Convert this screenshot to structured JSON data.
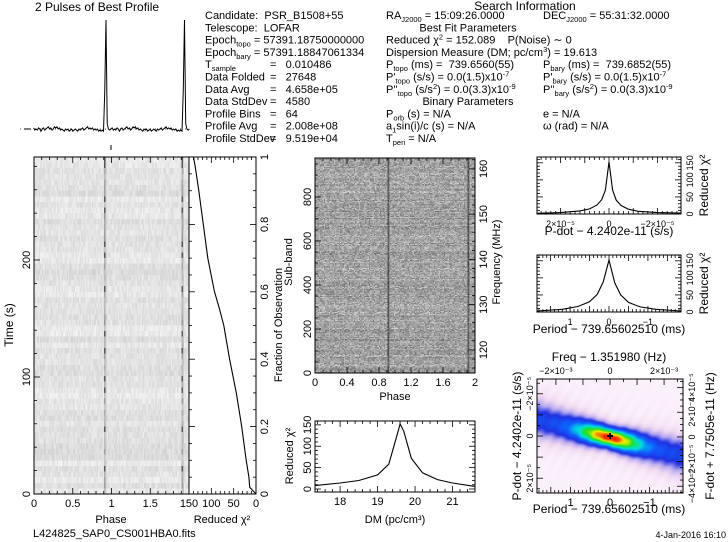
{
  "title": "2 Pulses of Best Profile",
  "footer": {
    "filename": "L424825_SAP0_CS001HBA0.fits",
    "date": "4-Jan-2016 16:10"
  },
  "info": {
    "heading": "Search Information",
    "col1": [
      [
        [
          "Candidate:  PSR_B1508+55",
          ""
        ]
      ],
      [
        [
          "Telescope:  LOFAR",
          ""
        ]
      ],
      [
        [
          "Epoch",
          ""
        ],
        [
          "topo",
          "sub"
        ],
        [
          " = 57391.18750000000",
          ""
        ]
      ],
      [
        [
          "Epoch",
          ""
        ],
        [
          "bary",
          "sub"
        ],
        [
          " = 57391.18847061334",
          ""
        ]
      ],
      [
        [
          "T",
          ""
        ],
        [
          "sample",
          "sub"
        ]
      ],
      [
        [
          "Data Folded",
          ""
        ]
      ],
      [
        [
          "Data Avg",
          ""
        ]
      ],
      [
        [
          "Data StdDev",
          ""
        ]
      ],
      [
        [
          "Profile Bins",
          ""
        ]
      ],
      [
        [
          "Profile Avg",
          ""
        ]
      ],
      [
        [
          "Profile StdDev",
          ""
        ]
      ]
    ],
    "col1_values": [
      "",
      "",
      "",
      "",
      "=   0.010486",
      "=   27648",
      "=   4.658e+05",
      "=   4580",
      "=   64",
      "=   2.008e+08",
      "=   9.519e+04"
    ],
    "col2": [
      {
        "segs": [
          [
            "RA",
            ""
          ],
          [
            "J2000",
            "sub"
          ],
          [
            " = 15:09:26.0000",
            ""
          ]
        ]
      },
      {
        "heading": true,
        "segs": [
          [
            "Best Fit Parameters",
            ""
          ]
        ]
      },
      {
        "segs": [
          [
            "Reduced χ",
            ""
          ],
          [
            "2",
            "sup"
          ],
          [
            " = 152.089    P(Noise) ∼ 0",
            ""
          ]
        ]
      },
      {
        "segs": [
          [
            "Dispersion Measure (DM; pc/cm",
            ""
          ],
          [
            "3",
            "sup"
          ],
          [
            ") = 19.613",
            ""
          ]
        ]
      },
      {
        "segs": [
          [
            "P",
            ""
          ],
          [
            "topo",
            "sub"
          ],
          [
            " (ms) =  739.6560(55)",
            ""
          ]
        ]
      },
      {
        "segs": [
          [
            "P'",
            ""
          ],
          [
            "topo",
            "sub"
          ],
          [
            " (s/s) = 0.0(1.5)x10",
            ""
          ],
          [
            "-7",
            "sup"
          ]
        ]
      },
      {
        "segs": [
          [
            "P''",
            ""
          ],
          [
            "topo",
            "sub"
          ],
          [
            " (s/s",
            ""
          ],
          [
            "2",
            "sup"
          ],
          [
            ") = 0.0(3.3)x10",
            ""
          ],
          [
            "-9",
            "sup"
          ]
        ]
      },
      {
        "heading": true,
        "segs": [
          [
            "Binary Parameters",
            ""
          ]
        ]
      },
      {
        "segs": [
          [
            "P",
            ""
          ],
          [
            "orb",
            "sub"
          ],
          [
            " (s) = N/A",
            ""
          ]
        ]
      },
      {
        "segs": [
          [
            "a",
            ""
          ],
          [
            "1",
            "sub"
          ],
          [
            "sin(i)/c (s) = N/A",
            ""
          ]
        ]
      },
      {
        "segs": [
          [
            "T",
            ""
          ],
          [
            "peri",
            "sub"
          ],
          [
            " = N/A",
            ""
          ]
        ]
      }
    ],
    "col3": [
      [
        [
          "DEC",
          ""
        ],
        [
          "J2000",
          "sub"
        ],
        [
          " = 55:31:32.0000",
          ""
        ]
      ],
      [],
      [],
      [],
      [
        [
          "P",
          ""
        ],
        [
          "bary",
          "sub"
        ],
        [
          " (ms) =  739.6852(55)",
          ""
        ]
      ],
      [
        [
          "P'",
          ""
        ],
        [
          "bary",
          "sub"
        ],
        [
          " (s/s) = 0.0(1.5)x10",
          ""
        ],
        [
          "-7",
          "sup"
        ]
      ],
      [
        [
          "P''",
          ""
        ],
        [
          "bary",
          "sub"
        ],
        [
          " (s/s",
          ""
        ],
        [
          "2",
          "sup"
        ],
        [
          ") = 0.0(3.3)x10",
          ""
        ],
        [
          "-9",
          "sup"
        ]
      ],
      [],
      [
        [
          "e = N/A",
          ""
        ]
      ],
      [
        [
          "ω (rad) = N/A",
          ""
        ]
      ]
    ]
  },
  "colors": {
    "ink": "#000000",
    "colormap": [
      [
        0,
        "#fbf2fb"
      ],
      [
        0.08,
        "#f0d8f2"
      ],
      [
        0.18,
        "#b4a8f0"
      ],
      [
        0.3,
        "#2030e0"
      ],
      [
        0.45,
        "#1060ff"
      ],
      [
        0.6,
        "#00e0e0"
      ],
      [
        0.74,
        "#20e020"
      ],
      [
        0.87,
        "#f0f000"
      ],
      [
        1,
        "#ff2000"
      ]
    ]
  },
  "chart_data": [
    {
      "id": "profile",
      "type": "line",
      "title": "2 Pulses of Best Profile",
      "pulses": 2,
      "bins": 64,
      "values": [
        0.01,
        -0.01,
        0.0,
        -0.01,
        0.01,
        0.0,
        -0.02,
        0.0,
        0.01,
        -0.01,
        0.0,
        0.01,
        0.02,
        0.0,
        0.01,
        -0.01,
        0.0,
        0.02,
        0.01,
        0.02,
        0.0,
        0.01,
        -0.01,
        0.0,
        -0.01,
        -0.02,
        0.0,
        -0.01,
        0.0,
        -0.02,
        -0.01,
        0.0,
        -0.02,
        -0.01,
        0.0,
        -0.01,
        -0.02,
        0.0,
        -0.01,
        0.0,
        0.01,
        -0.01,
        0.0,
        0.01,
        0.02,
        0.0,
        0.01,
        0.0,
        0.01,
        -0.01,
        0.0,
        -0.01,
        0.0,
        -0.02,
        -0.01,
        -0.02,
        -0.01,
        -0.02,
        0.35,
        1.0,
        0.05,
        0.0,
        -0.01,
        0.0
      ]
    },
    {
      "id": "time_phase",
      "type": "heatmap",
      "colormap": "grayscale",
      "xlabel": "Phase",
      "ylabel": "Time (s)",
      "xlim": [
        0,
        2
      ],
      "ylim": [
        0,
        288
      ],
      "pulse_phase": 0.92,
      "xticks": [
        {
          "v": 0,
          "t": "0"
        },
        {
          "v": 0.5,
          "t": "0.5"
        },
        {
          "v": 1,
          "t": "1"
        },
        {
          "v": 1.5,
          "t": "1.5"
        }
      ],
      "yticks": [
        {
          "v": 0,
          "t": "0"
        },
        {
          "v": 100,
          "t": "100"
        },
        {
          "v": 200,
          "t": "200"
        }
      ]
    },
    {
      "id": "chi_vs_fraction",
      "type": "line",
      "xlabel": "Reduced χ²",
      "ylabel": "Fraction of Observation",
      "xlim": [
        150,
        0
      ],
      "ylim": [
        0,
        1
      ],
      "xticks": [
        {
          "v": 150,
          "t": "150"
        },
        {
          "v": 100,
          "t": "100"
        },
        {
          "v": 50,
          "t": "50"
        },
        {
          "v": 0,
          "t": "0"
        }
      ],
      "yticks": [
        {
          "v": 0,
          "t": "0"
        },
        {
          "v": 0.2,
          "t": "0.2"
        },
        {
          "v": 0.4,
          "t": "0.4"
        },
        {
          "v": 0.6,
          "t": "0.6"
        },
        {
          "v": 0.8,
          "t": "0.8"
        },
        {
          "v": 1,
          "t": "1"
        }
      ],
      "points": [
        [
          0,
          0
        ],
        [
          0.02,
          14
        ],
        [
          0.05,
          16
        ],
        [
          0.1,
          22
        ],
        [
          0.2,
          32
        ],
        [
          0.3,
          44
        ],
        [
          0.4,
          59
        ],
        [
          0.5,
          72
        ],
        [
          0.55,
          82
        ],
        [
          0.6,
          93
        ],
        [
          0.7,
          108
        ],
        [
          0.8,
          118
        ],
        [
          0.9,
          128
        ],
        [
          0.97,
          136
        ],
        [
          1,
          140
        ]
      ]
    },
    {
      "id": "subband_phase",
      "type": "heatmap",
      "colormap": "grayscale",
      "xlabel": "Phase",
      "ylabel": "Sub-band",
      "y2label": "Frequency (MHz)",
      "xlim": [
        0,
        2
      ],
      "ylim": [
        0,
        977
      ],
      "y2lim": [
        114.9,
        162.4
      ],
      "pulse_phase": 0.92,
      "xticks": [
        {
          "v": 0,
          "t": "0"
        },
        {
          "v": 0.4,
          "t": "0.4"
        },
        {
          "v": 0.8,
          "t": "0.8"
        },
        {
          "v": 1.2,
          "t": "1.2"
        },
        {
          "v": 1.6,
          "t": "1.6"
        },
        {
          "v": 2,
          "t": "2"
        }
      ],
      "yticks": [
        {
          "v": 0,
          "t": "0"
        },
        {
          "v": 200,
          "t": "200"
        },
        {
          "v": 400,
          "t": "400"
        },
        {
          "v": 600,
          "t": "600"
        },
        {
          "v": 800,
          "t": "800"
        }
      ],
      "y2ticks": [
        {
          "v": 120,
          "t": "120"
        },
        {
          "v": 130,
          "t": "130"
        },
        {
          "v": 140,
          "t": "140"
        },
        {
          "v": 150,
          "t": "150"
        },
        {
          "v": 160,
          "t": "160"
        }
      ]
    },
    {
      "id": "dm_curve",
      "type": "line",
      "xlabel": "DM (pc/cm³)",
      "ylabel": "Reduced χ²",
      "xlim": [
        17.33,
        21.6
      ],
      "ylim": [
        -7,
        159
      ],
      "xticks": [
        {
          "v": 18,
          "t": "18"
        },
        {
          "v": 19,
          "t": "19"
        },
        {
          "v": 20,
          "t": "20"
        },
        {
          "v": 21,
          "t": "21"
        }
      ],
      "yticks": [
        {
          "v": 0,
          "t": "0"
        },
        {
          "v": 50,
          "t": "50"
        },
        {
          "v": 100,
          "t": "100"
        },
        {
          "v": 150,
          "t": "150"
        }
      ],
      "points": [
        [
          17.33,
          8
        ],
        [
          18,
          14
        ],
        [
          18.5,
          20
        ],
        [
          19,
          33
        ],
        [
          19.3,
          58
        ],
        [
          19.5,
          120
        ],
        [
          19.6,
          152
        ],
        [
          19.7,
          135
        ],
        [
          19.9,
          72
        ],
        [
          20.2,
          38
        ],
        [
          20.6,
          22
        ],
        [
          21,
          14
        ],
        [
          21.6,
          6
        ]
      ]
    },
    {
      "id": "pdot_curve",
      "type": "line",
      "xlabel": "P-dot − 4.2402e-11 (s/s)",
      "ylabel": "Reduced χ²",
      "xlim": [
        2.97e-05,
        -2.97e-05
      ],
      "ylim": [
        0,
        167
      ],
      "xticks": [
        {
          "v": 2e-05,
          "t": "2×10⁻⁵"
        },
        {
          "v": 0,
          "t": "0"
        },
        {
          "v": -2e-05,
          "t": "−2×10⁻⁵"
        }
      ],
      "yticks": [
        {
          "v": 0,
          "t": "0"
        },
        {
          "v": 50,
          "t": "50"
        },
        {
          "v": 100,
          "t": "100"
        },
        {
          "v": 150,
          "t": "150"
        }
      ],
      "points": [
        [
          2.97e-05,
          2
        ],
        [
          2e-05,
          4
        ],
        [
          1.2e-05,
          9
        ],
        [
          8e-06,
          15
        ],
        [
          5e-06,
          26
        ],
        [
          3e-06,
          42
        ],
        [
          1.5e-06,
          70
        ],
        [
          0,
          152
        ],
        [
          -1.5e-06,
          70
        ],
        [
          -3e-06,
          40
        ],
        [
          -5e-06,
          25
        ],
        [
          -8e-06,
          14
        ],
        [
          -1.2e-05,
          8
        ],
        [
          -2e-05,
          4
        ],
        [
          -2.97e-05,
          3
        ]
      ]
    },
    {
      "id": "period_curve",
      "type": "line",
      "xlabel": "Period − 739.65602510 (ms)",
      "ylabel": "Reduced χ²",
      "xlim": [
        1.85,
        -1.85
      ],
      "ylim": [
        0,
        167
      ],
      "xticks": [
        {
          "v": 1,
          "t": "1"
        },
        {
          "v": 0,
          "t": "0"
        },
        {
          "v": -1,
          "t": "−1"
        }
      ],
      "yticks": [
        {
          "v": 0,
          "t": "0"
        },
        {
          "v": 50,
          "t": "50"
        },
        {
          "v": 100,
          "t": "100"
        },
        {
          "v": 150,
          "t": "150"
        }
      ],
      "points": [
        [
          1.85,
          3
        ],
        [
          1.2,
          8
        ],
        [
          0.8,
          16
        ],
        [
          0.5,
          30
        ],
        [
          0.3,
          52
        ],
        [
          0.15,
          88
        ],
        [
          0,
          152
        ],
        [
          -0.15,
          85
        ],
        [
          -0.3,
          50
        ],
        [
          -0.5,
          28
        ],
        [
          -0.8,
          15
        ],
        [
          -1.2,
          8
        ],
        [
          -1.85,
          3
        ]
      ]
    },
    {
      "id": "p_pdot_plane",
      "type": "heatmap",
      "xlabel": "Period − 739.65602510 (ms)",
      "ylabel": "P-dot − 4.2402e-11 (s/s)",
      "x2label": "Freq − 1.351980 (Hz)",
      "y2label": "F-dot + 7.7505e-11 (Hz)",
      "xlim": [
        1.85,
        -1.85
      ],
      "ylim": [
        2.7e-05,
        -2.7e-05
      ],
      "x2lim": [
        -0.0027,
        0.0027
      ],
      "y2lim": [
        -4.55e-05,
        4.7e-05
      ],
      "xticks": [
        {
          "v": 1,
          "t": "1"
        },
        {
          "v": 0,
          "t": "0"
        },
        {
          "v": -1,
          "t": "−1"
        }
      ],
      "x2ticks": [
        {
          "v": -0.002,
          "t": "−2×10⁻³"
        },
        {
          "v": 0,
          "t": "0"
        },
        {
          "v": 0.002,
          "t": "2×10⁻³"
        }
      ],
      "yticks": [
        {
          "v": 2e-05,
          "t": "2×10⁻⁵"
        },
        {
          "v": 0,
          "t": "0"
        },
        {
          "v": -2e-05,
          "t": "−2×10⁻⁵"
        }
      ],
      "y2ticks": [
        {
          "v": -4e-05,
          "t": "−4×10⁻⁵"
        },
        {
          "v": -2e-05,
          "t": "−2×10⁻⁵"
        },
        {
          "v": 0,
          "t": "0"
        },
        {
          "v": 2e-05,
          "t": "2×10⁻⁵"
        },
        {
          "v": 4e-05,
          "t": "4×10⁻⁵"
        }
      ],
      "best": [
        0,
        0
      ]
    }
  ]
}
